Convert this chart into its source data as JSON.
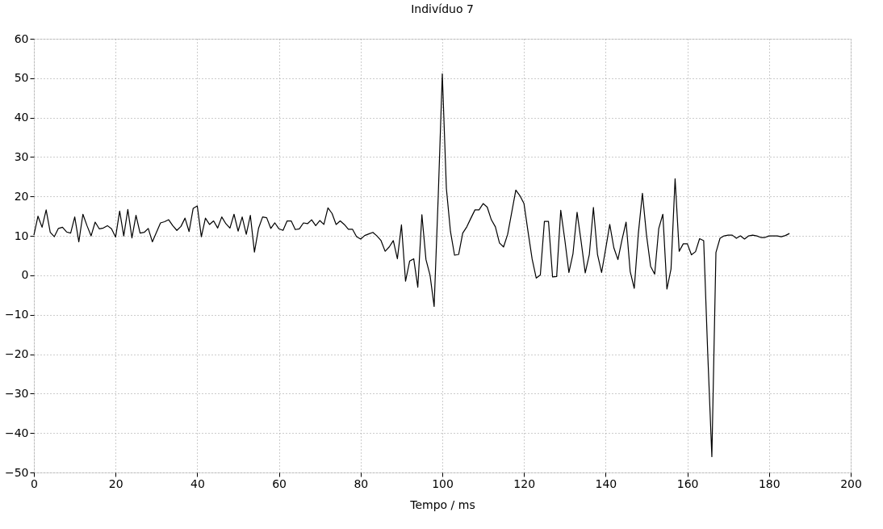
{
  "chart_data": {
    "type": "line",
    "title": "Indivíduo 7",
    "xlabel": "Tempo / ms",
    "x": [
      0,
      1,
      2,
      3,
      4,
      5,
      6,
      7,
      8,
      9,
      10,
      11,
      12,
      13,
      14,
      15,
      16,
      17,
      18,
      19,
      20,
      21,
      22,
      23,
      24,
      25,
      26,
      27,
      28,
      29,
      30,
      31,
      32,
      33,
      34,
      35,
      36,
      37,
      38,
      39,
      40,
      41,
      42,
      43,
      44,
      45,
      46,
      47,
      48,
      49,
      50,
      51,
      52,
      53,
      54,
      55,
      56,
      57,
      58,
      59,
      60,
      61,
      62,
      63,
      64,
      65,
      66,
      67,
      68,
      69,
      70,
      71,
      72,
      73,
      74,
      75,
      76,
      77,
      78,
      79,
      80,
      81,
      82,
      83,
      84,
      85,
      86,
      87,
      88,
      89,
      90,
      91,
      92,
      93,
      94,
      95,
      96,
      97,
      98,
      99,
      100,
      101,
      102,
      103,
      104,
      105,
      106,
      107,
      108,
      109,
      110,
      111,
      112,
      113,
      114,
      115,
      116,
      117,
      118,
      119,
      120,
      121,
      122,
      123,
      124,
      125,
      126,
      127,
      128,
      129,
      130,
      131,
      132,
      133,
      134,
      135,
      136,
      137,
      138,
      139,
      140,
      141,
      142,
      143,
      144,
      145,
      146,
      147,
      148,
      149,
      150,
      151,
      152,
      153,
      154,
      155,
      156,
      157,
      158,
      159,
      160,
      161,
      162,
      163,
      164,
      165,
      166,
      167,
      168,
      169,
      170,
      171,
      172,
      173,
      174,
      175,
      176,
      177,
      178,
      179,
      180,
      181,
      182,
      183,
      184,
      185
    ],
    "series": [
      {
        "color": "#000000",
        "values": [
          10.2,
          15,
          12.2,
          16.6,
          10.9,
          9.8,
          11.9,
          12.2,
          11,
          10.7,
          14.8,
          8.5,
          15.5,
          12.6,
          10,
          13.5,
          11.8,
          12,
          12.6,
          11.8,
          9.7,
          16.3,
          10,
          16.7,
          9.5,
          15.2,
          10.7,
          10.9,
          11.9,
          8.5,
          10.9,
          13.3,
          13.6,
          14.1,
          12.6,
          11.4,
          12.4,
          14.5,
          11.1,
          17,
          17.6,
          9.8,
          14.5,
          12.9,
          13.8,
          12,
          14.8,
          13.1,
          12,
          15.5,
          11.2,
          14.8,
          10.4,
          15.2,
          5.9,
          11.9,
          14.8,
          14.6,
          11.9,
          13.3,
          11.8,
          11.4,
          13.8,
          13.8,
          11.6,
          11.8,
          13.3,
          13.1,
          14.1,
          12.6,
          13.9,
          12.9,
          17.1,
          15.7,
          12.9,
          13.8,
          12.9,
          11.7,
          11.7,
          9.8,
          9.2,
          10.1,
          10.5,
          10.9,
          10,
          8.8,
          6.1,
          7.2,
          8.8,
          4.2,
          12.8,
          -1.5,
          3.6,
          4.2,
          -3,
          15.4,
          4,
          0,
          -7.9,
          20,
          51.1,
          22,
          11.1,
          5.1,
          5.3,
          10.7,
          12.3,
          14.5,
          16.6,
          16.6,
          18.2,
          17.3,
          14.1,
          12.3,
          8.2,
          7.2,
          10.4,
          16,
          21.6,
          20.2,
          18.2,
          11,
          4.1,
          -0.7,
          0.1,
          13.7,
          13.7,
          -0.4,
          -0.3,
          16.5,
          9,
          0.7,
          5.5,
          16,
          8.5,
          0.6,
          5.3,
          17.2,
          5.3,
          0.7,
          6.7,
          12.9,
          7,
          4,
          9,
          13.5,
          1,
          -3.3,
          10.6,
          20.8,
          10.2,
          2.3,
          0.3,
          11.9,
          15.5,
          -3.5,
          1.6,
          24.5,
          6.1,
          8,
          8,
          5.2,
          6,
          9.3,
          8.8,
          -20,
          -46,
          5.8,
          9.4,
          10,
          10.2,
          10.2,
          9.4,
          10,
          9.2,
          10,
          10.2,
          10,
          9.6,
          9.6,
          10,
          10,
          10,
          9.8,
          10.1,
          10.6
        ]
      }
    ],
    "xlim": [
      0,
      200
    ],
    "xticks": [
      0,
      20,
      40,
      60,
      80,
      100,
      120,
      140,
      160,
      180,
      200
    ],
    "ylim": [
      -50,
      60
    ],
    "yticks": [
      -50,
      -40,
      -30,
      -20,
      -10,
      0,
      10,
      20,
      30,
      40,
      50,
      60
    ],
    "grid": true,
    "marker": "none",
    "line_style": "solid",
    "legend": false
  }
}
